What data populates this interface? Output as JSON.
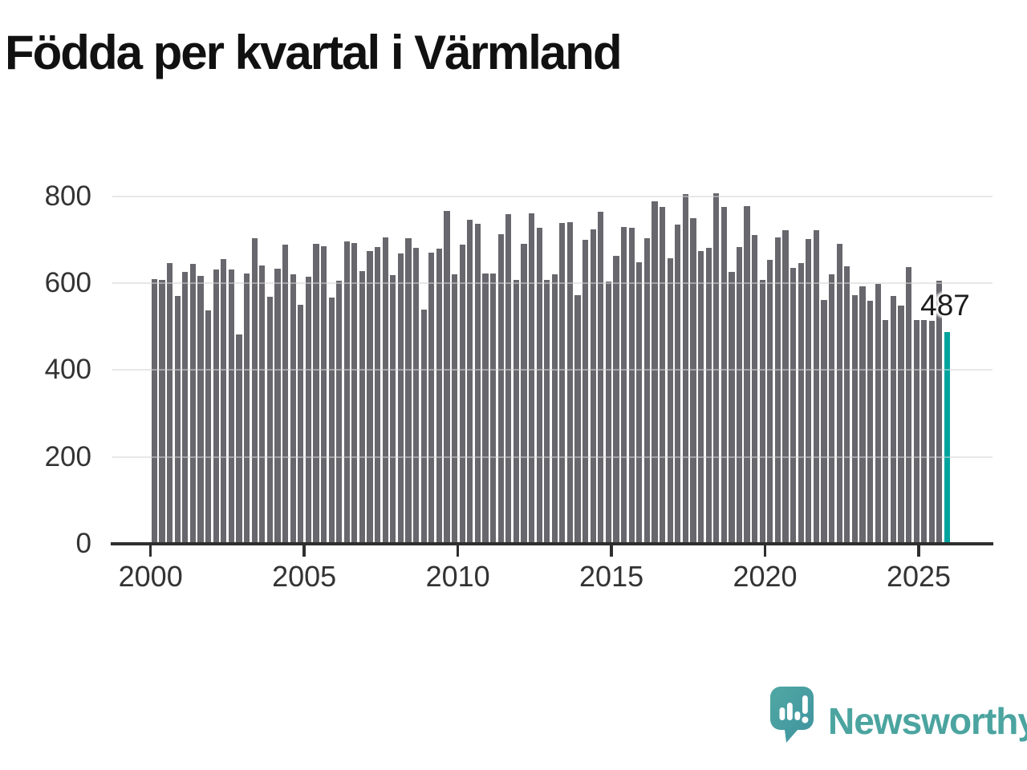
{
  "title": "Födda per kvartal i Värmland",
  "annotation": {
    "value_label": "487"
  },
  "logo": {
    "brand": "Newsworthy"
  },
  "colors": {
    "bar": "#67676d",
    "highlight": "#00a39e",
    "grid": "#e4e4e4",
    "axis": "#2e2e2e",
    "axis_text": "#333333",
    "title_text": "#111111",
    "logo_teal": "#4ba49f"
  },
  "y_axis": {
    "tick_labels": [
      "0",
      "200",
      "400",
      "600",
      "800"
    ]
  },
  "x_axis": {
    "tick_labels": [
      "2000",
      "2005",
      "2010",
      "2015",
      "2020",
      "2025"
    ]
  },
  "chart_data": {
    "type": "bar",
    "title": "Födda per kvartal i Värmland",
    "xlabel": "",
    "ylabel": "",
    "x_start": "2000 Q1",
    "frequency": "quarterly",
    "ylim": [
      0,
      830
    ],
    "yticks": [
      0,
      200,
      400,
      600,
      800
    ],
    "xticks": [
      2000,
      2005,
      2010,
      2015,
      2020,
      2025
    ],
    "grid": "horizontal",
    "legend": "none",
    "highlight_last": true,
    "last_value_label": "487",
    "values": [
      610,
      607,
      646,
      570,
      625,
      644,
      616,
      538,
      631,
      655,
      631,
      481,
      623,
      704,
      641,
      569,
      633,
      689,
      620,
      550,
      615,
      690,
      685,
      567,
      605,
      696,
      693,
      627,
      673,
      684,
      705,
      619,
      669,
      703,
      681,
      540,
      671,
      679,
      767,
      621,
      688,
      745,
      736,
      623,
      623,
      712,
      758,
      608,
      690,
      761,
      728,
      607,
      621,
      738,
      741,
      572,
      700,
      724,
      764,
      604,
      663,
      730,
      727,
      648,
      703,
      788,
      775,
      658,
      735,
      805,
      750,
      673,
      682,
      807,
      776,
      626,
      683,
      778,
      710,
      607,
      653,
      705,
      721,
      635,
      647,
      701,
      722,
      561,
      620,
      690,
      638,
      573,
      593,
      559,
      599,
      516,
      570,
      549,
      637,
      516,
      515,
      513,
      605,
      487
    ]
  }
}
